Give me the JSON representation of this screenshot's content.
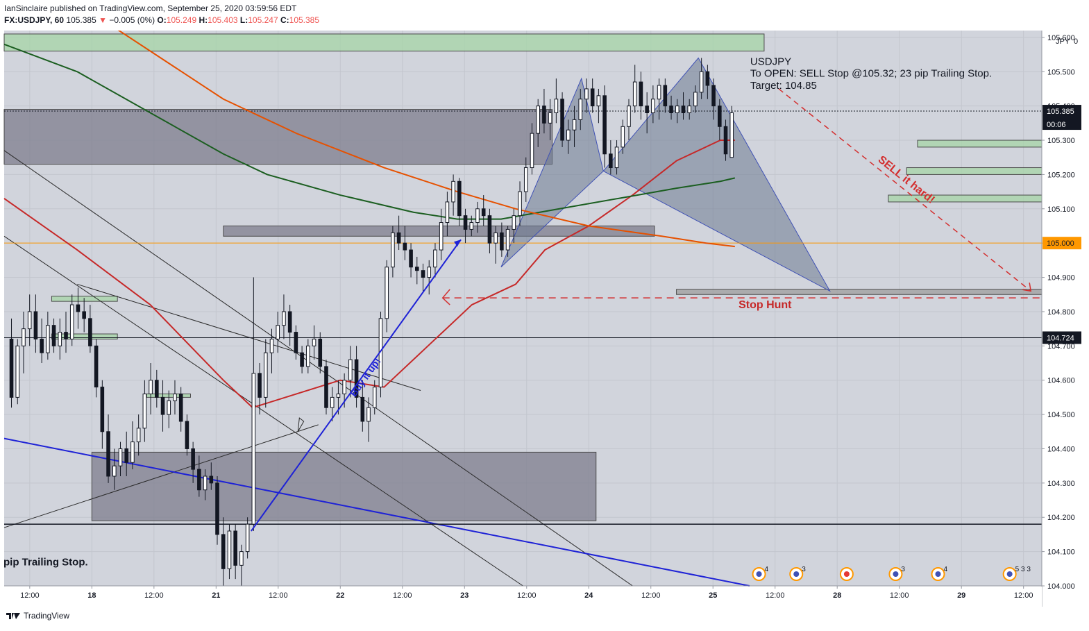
{
  "header": {
    "published_line": "IanSinclaire published on TradingView.com, September 25, 2020 03:59:56 EDT",
    "symbol": "FX:USDJPY, 60",
    "last": "105.385",
    "change": "−0.005 (0%)",
    "open_label": "O:",
    "open": "105.249",
    "high_label": "H:",
    "high": "105.403",
    "low_label": "L:",
    "low": "105.247",
    "close_label": "C:",
    "close": "105.385"
  },
  "chart_data": {
    "type": "candlestick",
    "symbol": "FX:USDJPY, 60",
    "currency_label": "JPY",
    "currency_suffix": "0",
    "y_ticks": [
      "105.600",
      "105.500",
      "105.400",
      "105.300",
      "105.200",
      "105.100",
      "105.000",
      "104.900",
      "104.800",
      "104.700",
      "104.600",
      "104.500",
      "104.400",
      "104.300",
      "104.200",
      "104.100",
      "104.000"
    ],
    "ylim": [
      104.0,
      105.62
    ],
    "x_ticks": [
      {
        "label": "12:00",
        "x": 3.5,
        "bold": false
      },
      {
        "label": "18",
        "x": 12.0,
        "bold": true
      },
      {
        "label": "12:00",
        "x": 20.5,
        "bold": false
      },
      {
        "label": "21",
        "x": 29.0,
        "bold": true
      },
      {
        "label": "12:00",
        "x": 37.5,
        "bold": false
      },
      {
        "label": "22",
        "x": 46.0,
        "bold": true
      },
      {
        "label": "12:00",
        "x": 54.5,
        "bold": false
      },
      {
        "label": "23",
        "x": 63.0,
        "bold": true
      },
      {
        "label": "12:00",
        "x": 71.5,
        "bold": false
      },
      {
        "label": "24",
        "x": 80.0,
        "bold": true
      },
      {
        "label": "12:00",
        "x": 88.5,
        "bold": false
      },
      {
        "label": "25",
        "x": 97.0,
        "bold": true
      },
      {
        "label": "12:00",
        "x": 105.5,
        "bold": false
      },
      {
        "label": "28",
        "x": 114.0,
        "bold": true
      },
      {
        "label": "12:00",
        "x": 122.5,
        "bold": false
      },
      {
        "label": "29",
        "x": 131.0,
        "bold": true
      },
      {
        "label": "12:00",
        "x": 139.5,
        "bold": false
      }
    ],
    "xlim": [
      0,
      142
    ],
    "price_labels": [
      {
        "value": 105.385,
        "text": "105.385",
        "sub": "00:06",
        "bg": "#131722",
        "color": "#ffffff"
      },
      {
        "value": 105.0,
        "text": "105.000",
        "bg": "#ff9800",
        "color": "#131722"
      },
      {
        "value": 104.724,
        "text": "104.724",
        "bg": "#131722",
        "color": "#ffffff"
      }
    ],
    "candles_ohlc": [
      [
        104.72,
        104.78,
        104.52,
        104.55
      ],
      [
        104.55,
        104.72,
        104.53,
        104.7
      ],
      [
        104.7,
        104.8,
        104.62,
        104.75
      ],
      [
        104.75,
        104.85,
        104.7,
        104.8
      ],
      [
        104.8,
        104.85,
        104.68,
        104.72
      ],
      [
        104.72,
        104.78,
        104.65,
        104.68
      ],
      [
        104.68,
        104.8,
        104.66,
        104.76
      ],
      [
        104.76,
        104.78,
        104.68,
        104.7
      ],
      [
        104.7,
        104.78,
        104.66,
        104.74
      ],
      [
        104.74,
        104.8,
        104.68,
        104.72
      ],
      [
        104.72,
        104.85,
        104.7,
        104.82
      ],
      [
        104.82,
        104.87,
        104.75,
        104.8
      ],
      [
        104.8,
        104.84,
        104.74,
        104.78
      ],
      [
        104.78,
        104.82,
        104.68,
        104.7
      ],
      [
        104.7,
        104.72,
        104.55,
        104.58
      ],
      [
        104.58,
        104.6,
        104.4,
        104.45
      ],
      [
        104.45,
        104.5,
        104.3,
        104.32
      ],
      [
        104.32,
        104.4,
        104.28,
        104.35
      ],
      [
        104.35,
        104.42,
        104.32,
        104.4
      ],
      [
        104.4,
        104.45,
        104.32,
        104.36
      ],
      [
        104.36,
        104.48,
        104.34,
        104.42
      ],
      [
        104.42,
        104.5,
        104.38,
        104.46
      ],
      [
        104.46,
        104.6,
        104.42,
        104.56
      ],
      [
        104.56,
        104.65,
        104.5,
        104.6
      ],
      [
        104.6,
        104.63,
        104.52,
        104.55
      ],
      [
        104.55,
        104.6,
        104.45,
        104.5
      ],
      [
        104.5,
        104.57,
        104.46,
        104.54
      ],
      [
        104.54,
        104.6,
        104.5,
        104.56
      ],
      [
        104.56,
        104.58,
        104.45,
        104.48
      ],
      [
        104.48,
        104.5,
        104.38,
        104.4
      ],
      [
        104.4,
        104.42,
        104.3,
        104.34
      ],
      [
        104.34,
        104.38,
        104.26,
        104.28
      ],
      [
        104.28,
        104.34,
        104.25,
        104.32
      ],
      [
        104.32,
        104.36,
        104.28,
        104.3
      ],
      [
        104.3,
        104.32,
        104.12,
        104.15
      ],
      [
        104.15,
        104.2,
        104.0,
        104.05
      ],
      [
        104.05,
        104.18,
        104.02,
        104.16
      ],
      [
        104.16,
        104.18,
        104.02,
        104.06
      ],
      [
        104.06,
        104.12,
        104.0,
        104.1
      ],
      [
        104.1,
        104.2,
        104.08,
        104.18
      ],
      [
        104.18,
        104.9,
        104.16,
        104.62
      ],
      [
        104.62,
        104.65,
        104.5,
        104.55
      ],
      [
        104.55,
        104.72,
        104.52,
        104.68
      ],
      [
        104.68,
        104.75,
        104.62,
        104.72
      ],
      [
        104.72,
        104.8,
        104.68,
        104.76
      ],
      [
        104.76,
        104.85,
        104.72,
        104.8
      ],
      [
        104.8,
        104.82,
        104.7,
        104.74
      ],
      [
        104.74,
        104.76,
        104.66,
        104.68
      ],
      [
        104.68,
        104.7,
        104.62,
        104.64
      ],
      [
        104.64,
        104.72,
        104.62,
        104.7
      ],
      [
        104.7,
        104.76,
        104.66,
        104.72
      ],
      [
        104.72,
        104.74,
        104.62,
        104.64
      ],
      [
        104.64,
        104.66,
        104.5,
        104.52
      ],
      [
        104.52,
        104.58,
        104.48,
        104.55
      ],
      [
        104.55,
        104.6,
        104.5,
        104.56
      ],
      [
        104.56,
        104.62,
        104.52,
        104.6
      ],
      [
        104.6,
        104.7,
        104.55,
        104.66
      ],
      [
        104.66,
        104.7,
        104.52,
        104.55
      ],
      [
        104.55,
        104.6,
        104.45,
        104.48
      ],
      [
        104.48,
        104.55,
        104.42,
        104.52
      ],
      [
        104.52,
        104.6,
        104.5,
        104.58
      ],
      [
        104.58,
        104.8,
        104.55,
        104.78
      ],
      [
        104.78,
        104.95,
        104.74,
        104.93
      ],
      [
        104.93,
        105.05,
        104.9,
        105.03
      ],
      [
        105.03,
        105.08,
        104.98,
        105.0
      ],
      [
        105.0,
        105.05,
        104.95,
        104.98
      ],
      [
        104.98,
        105.0,
        104.9,
        104.93
      ],
      [
        104.93,
        104.96,
        104.88,
        104.92
      ],
      [
        104.92,
        104.94,
        104.86,
        104.9
      ],
      [
        104.9,
        104.95,
        104.85,
        104.93
      ],
      [
        104.93,
        105.0,
        104.9,
        104.98
      ],
      [
        104.98,
        105.1,
        104.95,
        105.06
      ],
      [
        105.06,
        105.15,
        105.02,
        105.12
      ],
      [
        105.12,
        105.2,
        105.08,
        105.18
      ],
      [
        105.18,
        105.19,
        105.05,
        105.08
      ],
      [
        105.08,
        105.1,
        105.0,
        105.04
      ],
      [
        105.04,
        105.08,
        105.02,
        105.06
      ],
      [
        105.06,
        105.12,
        105.03,
        105.1
      ],
      [
        105.1,
        105.14,
        105.05,
        105.08
      ],
      [
        105.08,
        105.1,
        104.97,
        105.0
      ],
      [
        105.0,
        105.05,
        104.94,
        105.03
      ],
      [
        105.03,
        105.06,
        104.96,
        104.98
      ],
      [
        104.98,
        105.05,
        104.96,
        105.04
      ],
      [
        105.04,
        105.1,
        105.0,
        105.08
      ],
      [
        105.08,
        105.18,
        105.05,
        105.15
      ],
      [
        105.15,
        105.25,
        105.12,
        105.22
      ],
      [
        105.22,
        105.35,
        105.2,
        105.32
      ],
      [
        105.32,
        105.42,
        105.28,
        105.4
      ],
      [
        105.4,
        105.45,
        105.32,
        105.35
      ],
      [
        105.35,
        105.42,
        105.3,
        105.38
      ],
      [
        105.38,
        105.48,
        105.35,
        105.42
      ],
      [
        105.42,
        105.44,
        105.28,
        105.3
      ],
      [
        105.3,
        105.36,
        105.26,
        105.33
      ],
      [
        105.33,
        105.4,
        105.28,
        105.36
      ],
      [
        105.36,
        105.45,
        105.33,
        105.42
      ],
      [
        105.42,
        105.48,
        105.38,
        105.45
      ],
      [
        105.45,
        105.48,
        105.38,
        105.4
      ],
      [
        105.4,
        105.45,
        105.35,
        105.43
      ],
      [
        105.43,
        105.46,
        105.22,
        105.26
      ],
      [
        105.26,
        105.3,
        105.2,
        105.22
      ],
      [
        105.22,
        105.3,
        105.2,
        105.28
      ],
      [
        105.28,
        105.36,
        105.26,
        105.34
      ],
      [
        105.34,
        105.42,
        105.3,
        105.4
      ],
      [
        105.4,
        105.52,
        105.38,
        105.47
      ],
      [
        105.47,
        105.5,
        105.36,
        105.4
      ],
      [
        105.4,
        105.44,
        105.32,
        105.38
      ],
      [
        105.38,
        105.46,
        105.35,
        105.42
      ],
      [
        105.42,
        105.48,
        105.36,
        105.46
      ],
      [
        105.46,
        105.48,
        105.38,
        105.4
      ],
      [
        105.4,
        105.43,
        105.36,
        105.38
      ],
      [
        105.38,
        105.42,
        105.35,
        105.4
      ],
      [
        105.4,
        105.44,
        105.36,
        105.38
      ],
      [
        105.38,
        105.42,
        105.36,
        105.4
      ],
      [
        105.4,
        105.46,
        105.38,
        105.44
      ],
      [
        105.44,
        105.54,
        105.42,
        105.5
      ],
      [
        105.5,
        105.52,
        105.42,
        105.46
      ],
      [
        105.46,
        105.48,
        105.36,
        105.4
      ],
      [
        105.4,
        105.42,
        105.3,
        105.34
      ],
      [
        105.34,
        105.36,
        105.24,
        105.26
      ],
      [
        105.25,
        105.4,
        105.25,
        105.38
      ]
    ],
    "candles_x0": 1.0,
    "candles_step": 0.5833,
    "indicators": [
      {
        "name": "SMA red",
        "color": "#c62828",
        "points": [
          [
            0,
            105.13
          ],
          [
            10,
            104.98
          ],
          [
            20,
            104.82
          ],
          [
            30,
            104.6
          ],
          [
            34,
            104.52
          ],
          [
            40,
            104.56
          ],
          [
            46,
            104.6
          ],
          [
            52,
            104.58
          ],
          [
            58,
            104.7
          ],
          [
            64,
            104.82
          ],
          [
            70,
            104.88
          ],
          [
            74,
            104.98
          ],
          [
            80,
            105.05
          ],
          [
            86,
            105.14
          ],
          [
            92,
            105.24
          ],
          [
            96,
            105.28
          ],
          [
            98,
            105.3
          ],
          [
            100,
            105.3
          ]
        ]
      },
      {
        "name": "SMA green",
        "color": "#1b5e20",
        "points": [
          [
            0,
            105.58
          ],
          [
            10,
            105.5
          ],
          [
            20,
            105.38
          ],
          [
            30,
            105.26
          ],
          [
            36,
            105.2
          ],
          [
            46,
            105.14
          ],
          [
            56,
            105.09
          ],
          [
            62,
            105.07
          ],
          [
            68,
            105.07
          ],
          [
            76,
            105.1
          ],
          [
            84,
            105.13
          ],
          [
            92,
            105.16
          ],
          [
            98,
            105.18
          ],
          [
            100,
            105.19
          ]
        ]
      },
      {
        "name": "SMA orange",
        "color": "#e65100",
        "points": [
          [
            0,
            105.82
          ],
          [
            10,
            105.7
          ],
          [
            20,
            105.56
          ],
          [
            30,
            105.42
          ],
          [
            40,
            105.32
          ],
          [
            52,
            105.22
          ],
          [
            62,
            105.15
          ],
          [
            70,
            105.1
          ],
          [
            80,
            105.05
          ],
          [
            90,
            105.02
          ],
          [
            96,
            105.0
          ],
          [
            100,
            104.99
          ]
        ]
      }
    ],
    "zones": [
      {
        "x1": 0,
        "x2": 104,
        "y1": 105.56,
        "y2": 105.61,
        "fill": "#a5d6a7"
      },
      {
        "x1": 0,
        "x2": 75,
        "y1": 105.23,
        "y2": 105.39,
        "fill": "#7e7e8e"
      },
      {
        "x1": 30,
        "x2": 89,
        "y1": 105.02,
        "y2": 105.05,
        "fill": "#7e7e8e"
      },
      {
        "x1": 12,
        "x2": 81,
        "y1": 104.19,
        "y2": 104.39,
        "fill": "#7e7e8e"
      },
      {
        "x1": 6.5,
        "x2": 15.5,
        "y1": 104.83,
        "y2": 104.845,
        "fill": "#a5d6a7"
      },
      {
        "x1": 6.5,
        "x2": 15.5,
        "y1": 104.72,
        "y2": 104.735,
        "fill": "#a5d6a7"
      },
      {
        "x1": 19.5,
        "x2": 25.5,
        "y1": 104.55,
        "y2": 104.56,
        "fill": "#a5d6a7"
      },
      {
        "x1": 125,
        "x2": 142,
        "y1": 105.28,
        "y2": 105.3,
        "fill": "#a5d6a7"
      },
      {
        "x1": 123.5,
        "x2": 142,
        "y1": 105.2,
        "y2": 105.22,
        "fill": "#a5d6a7"
      },
      {
        "x1": 121,
        "x2": 142,
        "y1": 105.12,
        "y2": 105.14,
        "fill": "#a5d6a7"
      },
      {
        "x1": 92,
        "x2": 142,
        "y1": 104.85,
        "y2": 104.865,
        "fill": "#9e9e9e"
      }
    ],
    "horizontal_lines": [
      {
        "y": 105.0,
        "color": "#ff9800",
        "width": 1
      },
      {
        "y": 104.724,
        "color": "#131722",
        "width": 1
      },
      {
        "y": 104.18,
        "color": "#131722",
        "width": 1.5
      },
      {
        "y": 105.385,
        "color": "#131722",
        "width": 1,
        "dash": "2,2"
      }
    ],
    "harmonic_pattern": [
      [
        68,
        104.93
      ],
      [
        79,
        105.48
      ],
      [
        82,
        105.21
      ],
      [
        95,
        105.54
      ],
      [
        113,
        104.86
      ]
    ],
    "annotation_text": {
      "main_title": "USDJPY",
      "main_line2": "To OPEN: SELL Stop @105.32; 23 pip Trailing Stop.",
      "main_line3": "Target: 104.85",
      "sell_label": "SELL it hard!",
      "stop_label": "Stop Hunt",
      "buy_label": "Buy it up!",
      "left_note": "pip Trailing Stop."
    },
    "events": [
      {
        "x": 103.3,
        "count": "4"
      },
      {
        "x": 108.4,
        "count": "3"
      },
      {
        "x": 115.3,
        "count": ""
      },
      {
        "x": 122.0,
        "count": "3"
      },
      {
        "x": 127.8,
        "count": "4"
      },
      {
        "x": 137.6,
        "count": "5 3 3"
      }
    ]
  },
  "footer": {
    "brand": "TradingView"
  }
}
